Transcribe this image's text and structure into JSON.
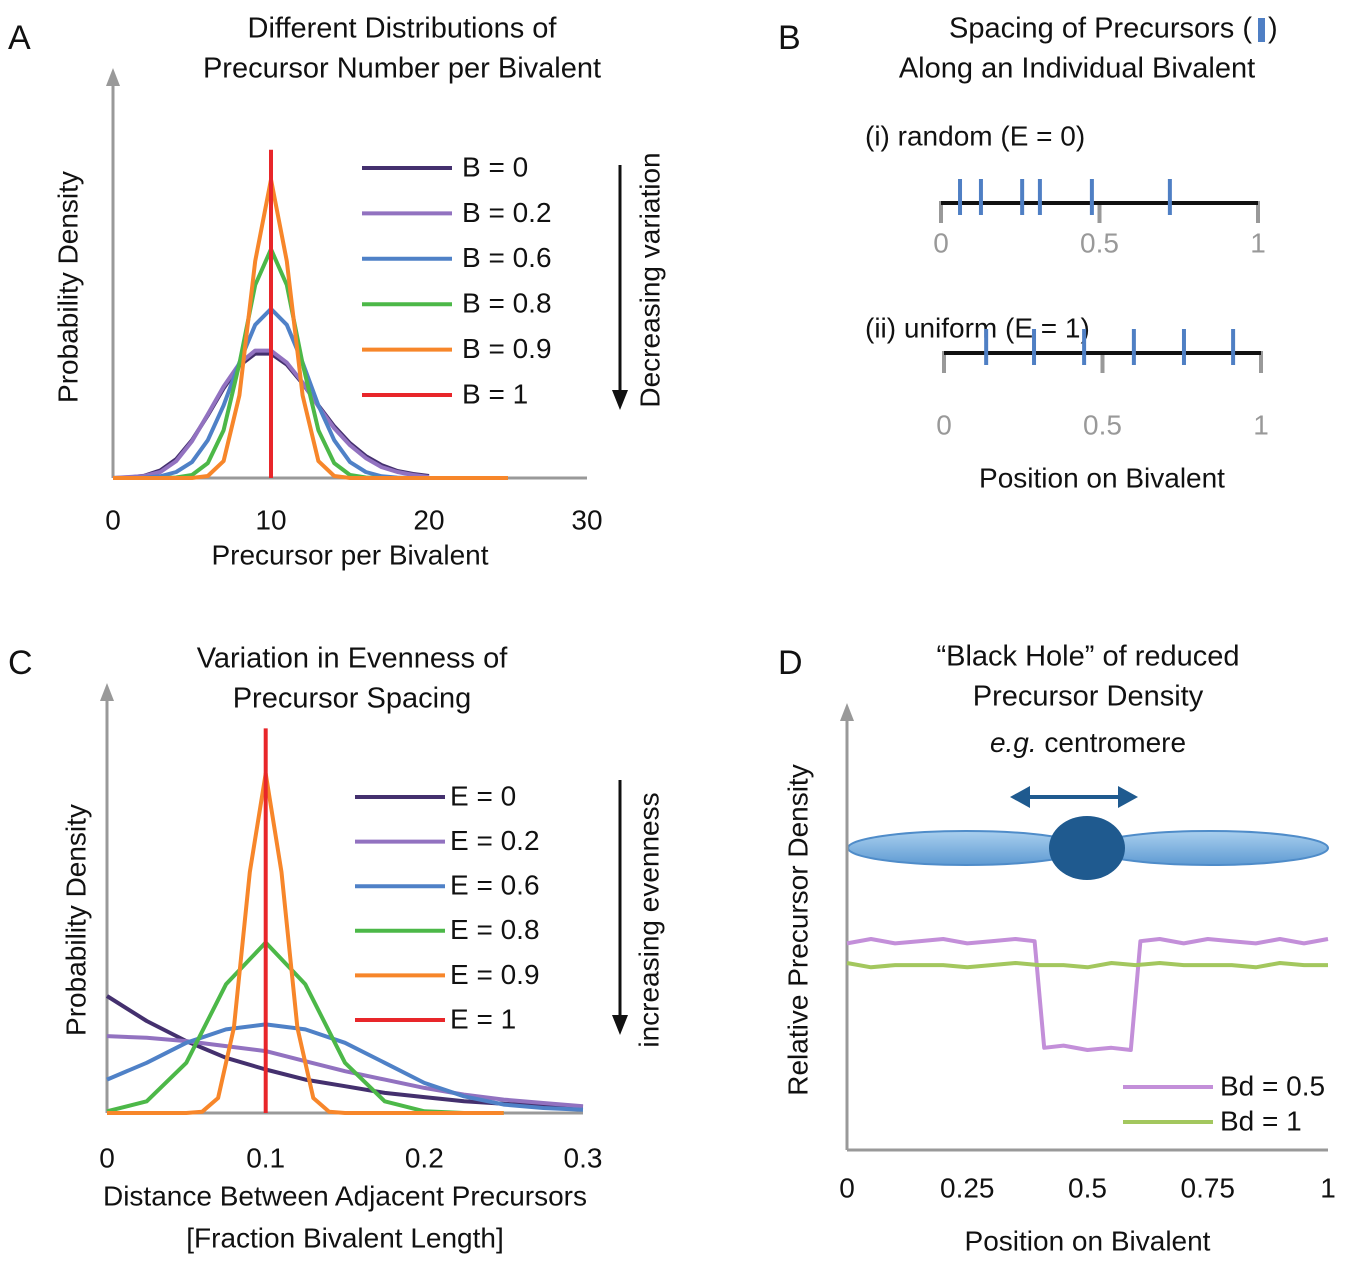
{
  "chart_data": [
    {
      "type": "line",
      "panel": "A",
      "title": [
        "Different Distributions of",
        "Precursor Number per Bivalent"
      ],
      "ylabel": "Probability Density",
      "xlabel": [
        "Precursor per Bivalent"
      ],
      "annotation": "Decreasing variation",
      "xlim": [
        0,
        30
      ],
      "xticks": [
        0,
        10,
        20,
        30
      ],
      "ylim": [
        0,
        0.4
      ],
      "series": [
        {
          "name": "B = 0",
          "color": "#44306e",
          "x": [
            0,
            1,
            2,
            3,
            4,
            5,
            6,
            7,
            8,
            9,
            10,
            11,
            12,
            13,
            14,
            15,
            16,
            17,
            18,
            19,
            20
          ],
          "values": [
            0,
            0.0005,
            0.0023,
            0.0076,
            0.019,
            0.038,
            0.063,
            0.09,
            0.113,
            0.125,
            0.125,
            0.114,
            0.095,
            0.073,
            0.052,
            0.035,
            0.022,
            0.013,
            0.007,
            0.004,
            0.002
          ]
        },
        {
          "name": "B = 0.2",
          "color": "#9272c0",
          "x": [
            0,
            1,
            2,
            3,
            4,
            5,
            6,
            7,
            8,
            9,
            10,
            11,
            12,
            13,
            14,
            15,
            16,
            17,
            18,
            19,
            20
          ],
          "values": [
            0,
            0.001,
            0.002,
            0.006,
            0.017,
            0.037,
            0.064,
            0.092,
            0.115,
            0.128,
            0.128,
            0.116,
            0.096,
            0.072,
            0.05,
            0.033,
            0.02,
            0.011,
            0.006,
            0.003,
            0.001
          ]
        },
        {
          "name": "B = 0.6",
          "color": "#4f81c7",
          "x": [
            0,
            1,
            2,
            3,
            4,
            5,
            6,
            7,
            8,
            9,
            10,
            11,
            12,
            13,
            14,
            15,
            16,
            17,
            18,
            19,
            20
          ],
          "values": [
            0,
            0,
            0.0004,
            0.0017,
            0.006,
            0.016,
            0.038,
            0.073,
            0.116,
            0.154,
            0.17,
            0.154,
            0.116,
            0.073,
            0.038,
            0.016,
            0.006,
            0.0017,
            0.0004,
            0,
            0
          ]
        },
        {
          "name": "B = 0.8",
          "color": "#4cb848",
          "x": [
            0,
            1,
            2,
            3,
            4,
            5,
            6,
            7,
            8,
            9,
            10,
            11,
            12,
            13,
            14,
            15,
            16,
            17,
            18,
            19,
            20
          ],
          "values": [
            0,
            0,
            0,
            0,
            0.0005,
            0.003,
            0.015,
            0.048,
            0.115,
            0.194,
            0.23,
            0.194,
            0.115,
            0.048,
            0.015,
            0.003,
            0.0005,
            0,
            0,
            0,
            0
          ]
        },
        {
          "name": "B = 0.9",
          "color": "#f7862a",
          "x": [
            0,
            1,
            2,
            3,
            4,
            5,
            6,
            7,
            8,
            9,
            10,
            11,
            12,
            13,
            14,
            15,
            16,
            17,
            18,
            19,
            20,
            21,
            22,
            23,
            24,
            25
          ],
          "values": [
            0,
            0,
            0,
            0,
            0,
            0,
            0.002,
            0.017,
            0.083,
            0.218,
            0.3,
            0.218,
            0.083,
            0.017,
            0.002,
            0,
            0,
            0,
            0,
            0,
            0,
            0,
            0,
            0,
            0,
            0
          ]
        },
        {
          "name": "B = 1",
          "color": "#e8262a",
          "x": [
            10,
            10
          ],
          "values": [
            0,
            0.33
          ]
        }
      ]
    },
    {
      "type": "strip",
      "panel": "B",
      "title": {
        "before_icon": "Spacing of Precursors (",
        "after_icon": ")"
      },
      "subtitle": "Along an Individual Bivalent",
      "xlim": [
        0,
        1
      ],
      "xticks": [
        0,
        0.5,
        1
      ],
      "color": "#4f7fc4",
      "rows": [
        {
          "label": "(i) random (E = 0)",
          "positions": [
            0.06,
            0.126,
            0.256,
            0.312,
            0.476,
            0.722
          ]
        },
        {
          "label": "(ii) uniform (E = 1)",
          "positions": [
            0.133,
            0.284,
            0.442,
            0.599,
            0.757,
            0.912
          ]
        }
      ],
      "xlabel": "Position on Bivalent"
    },
    {
      "type": "line",
      "panel": "C",
      "title": [
        "Variation in Evenness of",
        "Precursor Spacing"
      ],
      "ylabel": "Probability Density",
      "xlabel": [
        "Distance Between Adjacent Precursors",
        "[Fraction Bivalent Length]"
      ],
      "annotation": "increasing evenness",
      "xlim": [
        0,
        0.3
      ],
      "xticks": [
        0,
        0.1,
        0.2,
        0.3
      ],
      "ylim": [
        0,
        25
      ],
      "series": [
        {
          "name": "E = 0",
          "color": "#44306e",
          "x": [
            0,
            0.025,
            0.05,
            0.075,
            0.1,
            0.125,
            0.15,
            0.175,
            0.2,
            0.225,
            0.25,
            0.275,
            0.3
          ],
          "values": [
            7.0,
            5.5,
            4.3,
            3.3,
            2.6,
            2.0,
            1.6,
            1.2,
            0.95,
            0.7,
            0.55,
            0.45,
            0.35
          ]
        },
        {
          "name": "E = 0.2",
          "color": "#9272c0",
          "x": [
            0,
            0.025,
            0.05,
            0.075,
            0.1,
            0.125,
            0.15,
            0.175,
            0.2,
            0.225,
            0.25,
            0.275,
            0.3
          ],
          "values": [
            4.6,
            4.5,
            4.3,
            4.0,
            3.7,
            3.1,
            2.5,
            2.0,
            1.5,
            1.1,
            0.8,
            0.6,
            0.4
          ]
        },
        {
          "name": "E = 0.6",
          "color": "#4f81c7",
          "x": [
            0,
            0.025,
            0.05,
            0.075,
            0.1,
            0.125,
            0.15,
            0.175,
            0.2,
            0.225,
            0.25,
            0.275,
            0.3
          ],
          "values": [
            2.0,
            3.0,
            4.2,
            5.0,
            5.3,
            5.0,
            4.2,
            3.0,
            1.8,
            1.0,
            0.5,
            0.3,
            0.2
          ]
        },
        {
          "name": "E = 0.8",
          "color": "#4cb848",
          "x": [
            0,
            0.025,
            0.05,
            0.075,
            0.1,
            0.125,
            0.15,
            0.175,
            0.2,
            0.225,
            0.25
          ],
          "values": [
            0.1,
            0.7,
            3.0,
            7.7,
            10.2,
            7.7,
            3.0,
            0.7,
            0.1,
            0,
            0
          ]
        },
        {
          "name": "E = 0.9",
          "color": "#f7862a",
          "x": [
            0,
            0.05,
            0.06,
            0.07,
            0.08,
            0.09,
            0.1,
            0.11,
            0.12,
            0.13,
            0.14,
            0.15,
            0.2,
            0.25
          ],
          "values": [
            0,
            0,
            0.08,
            0.9,
            5.1,
            14.4,
            20.3,
            14.4,
            5.1,
            0.9,
            0.08,
            0,
            0,
            0
          ]
        },
        {
          "name": "E = 1",
          "color": "#e8262a",
          "x": [
            0.1,
            0.1
          ],
          "values": [
            0,
            23
          ]
        }
      ]
    },
    {
      "type": "line",
      "panel": "D",
      "title": [
        "“Black Hole” of reduced",
        "Precursor Density"
      ],
      "note": {
        "italic": "e.g.",
        "text": " centromere"
      },
      "ylabel": "Relative Precursor Density",
      "xlabel": [
        "Position on Bivalent"
      ],
      "xlim": [
        0,
        1
      ],
      "xticks": [
        0,
        0.25,
        0.5,
        0.75,
        1
      ],
      "ylim": [
        0,
        2
      ],
      "series": [
        {
          "name": "Bd = 0.5",
          "color": "#c38fd9",
          "x": [
            0,
            0.05,
            0.1,
            0.15,
            0.2,
            0.25,
            0.3,
            0.35,
            0.39,
            0.41,
            0.45,
            0.5,
            0.55,
            0.59,
            0.61,
            0.65,
            0.7,
            0.75,
            0.8,
            0.85,
            0.9,
            0.95,
            1
          ],
          "values": [
            0.95,
            0.97,
            0.95,
            0.96,
            0.97,
            0.95,
            0.96,
            0.97,
            0.96,
            0.47,
            0.48,
            0.46,
            0.47,
            0.46,
            0.96,
            0.97,
            0.95,
            0.97,
            0.96,
            0.95,
            0.97,
            0.95,
            0.97
          ]
        },
        {
          "name": "Bd = 1",
          "color": "#a3c75e",
          "x": [
            0,
            0.05,
            0.1,
            0.15,
            0.2,
            0.25,
            0.3,
            0.35,
            0.4,
            0.45,
            0.5,
            0.55,
            0.6,
            0.65,
            0.7,
            0.75,
            0.8,
            0.85,
            0.9,
            0.95,
            1
          ],
          "values": [
            0.86,
            0.84,
            0.85,
            0.85,
            0.85,
            0.84,
            0.85,
            0.86,
            0.85,
            0.85,
            0.84,
            0.86,
            0.85,
            0.86,
            0.85,
            0.85,
            0.85,
            0.84,
            0.86,
            0.85,
            0.85
          ]
        }
      ]
    }
  ]
}
